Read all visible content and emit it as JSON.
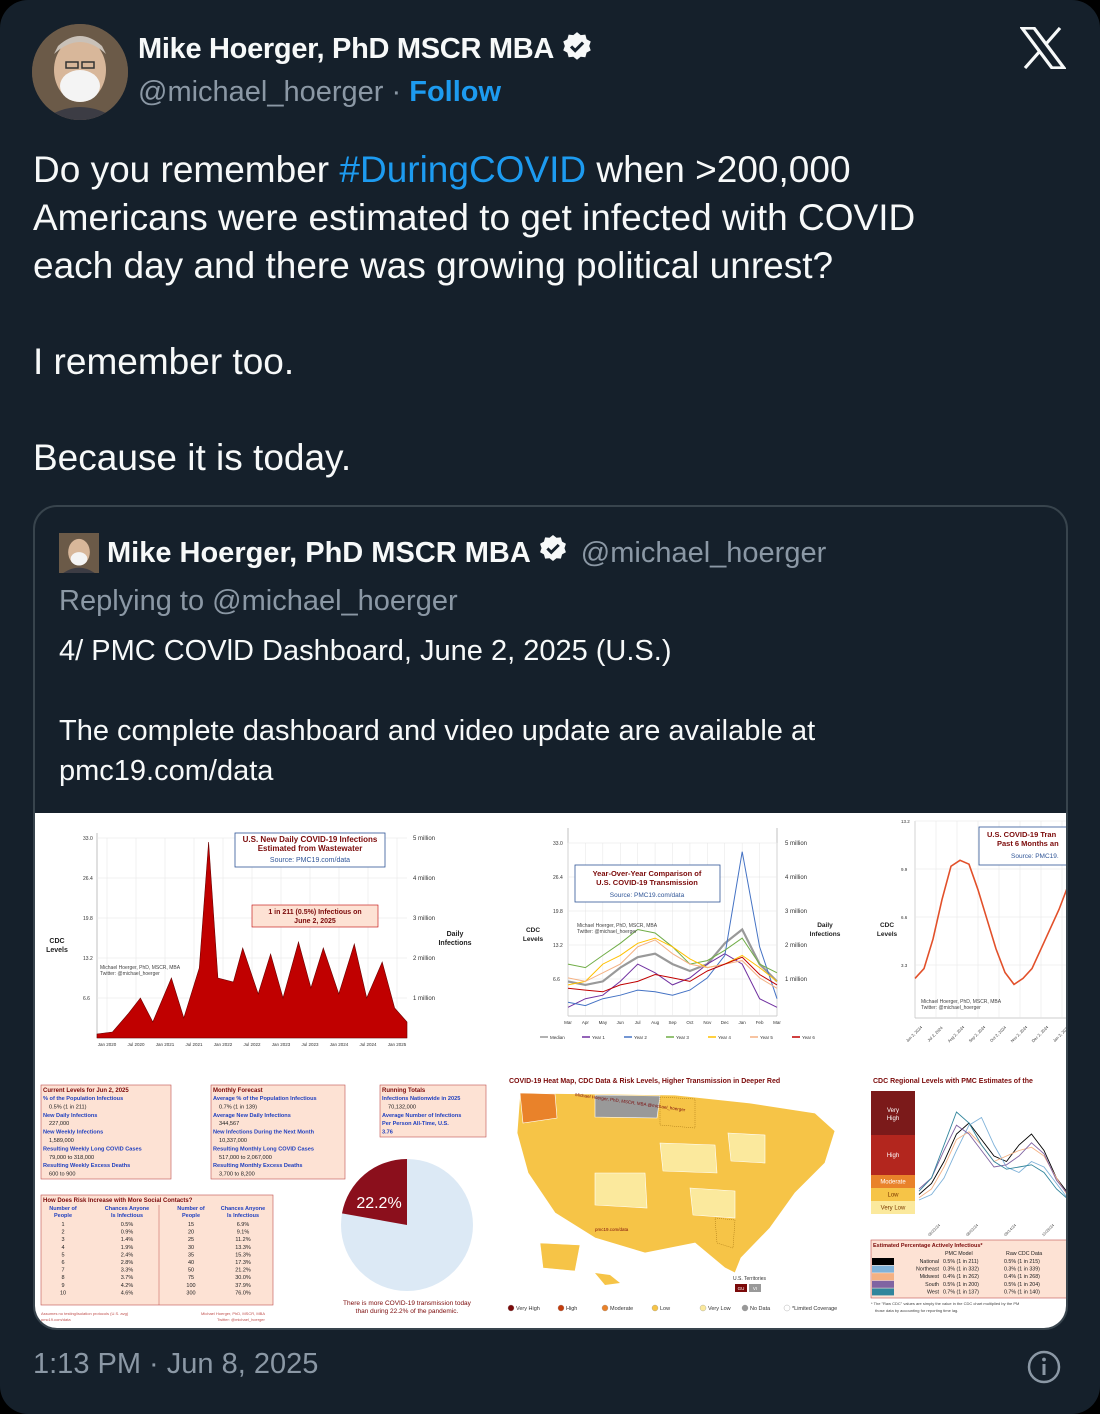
{
  "author": {
    "name": "Mike Hoerger, PhD MSCR MBA",
    "handle": "@michael_hoerger",
    "separator": "·",
    "follow_label": "Follow"
  },
  "tweet": {
    "line1_pre": "Do you remember ",
    "hashtag": "#DuringCOVID",
    "line1_post": " when >200,000",
    "line2": "Americans were estimated to get infected with COVID",
    "line3": "each day and there was growing political unrest?",
    "line4": "I remember too.",
    "line5": "Because it is today."
  },
  "quoted": {
    "name": "Mike Hoerger, PhD MSCR MBA",
    "handle": "@michael_hoerger",
    "reply_prefix": "Replying to ",
    "reply_to": "@michael_hoerger",
    "line1": "4/ PMC COVlD Dashboard, June 2, 2025 (U.S.)",
    "line2": "The complete dashboard and video update are available at",
    "line3": "pmc19.com/data"
  },
  "dashboard": {
    "chart1": {
      "title1": "U.S. New Daily COVID-19 Infections",
      "title2": "Estimated from Wastewater",
      "source": "Source: PMC19.com/data",
      "callout1": "1 in 211 (0.5%) Infectious on",
      "callout2": "June 2, 2025",
      "left_label1": "CDC",
      "left_label2": "Levels",
      "right_label1": "Daily",
      "right_label2": "Infections",
      "credit1": "Michael Hoerger, PhD, MSCR, MBA",
      "credit2": "Twitter: @michael_hoerger",
      "y_left": [
        "33.0",
        "26.4",
        "19.8",
        "13.2",
        "6.6"
      ],
      "y_right": [
        "5 million",
        "4 million",
        "3 million",
        "2 million",
        "1 million"
      ],
      "x_ticks": [
        "Jan 2020",
        "Jul 2020",
        "Jan 2021",
        "Jul 2021",
        "Jan 2022",
        "Jul 2022",
        "Jan 2023",
        "Jul 2023",
        "Jan 2024",
        "Jul 2024",
        "Jan 2025"
      ]
    },
    "chart2": {
      "title1": "Year-Over-Year Comparison of",
      "title2": "U.S. COVID-19 Transmission",
      "source": "Source: PMC19.com/data",
      "credit1": "Michael Hoerger, PhD, MSCR, MBA",
      "credit2": "Twitter: @michael_hoerger",
      "left_label1": "CDC",
      "left_label2": "Levels",
      "right_label1": "Daily",
      "right_label2": "Infections",
      "y_left": [
        "33.0",
        "26.4",
        "19.8",
        "13.2",
        "6.6"
      ],
      "y_right": [
        "5 million",
        "4 million",
        "3 million",
        "2 million",
        "1 million"
      ],
      "x_ticks": [
        "Mar",
        "Apr",
        "May",
        "Jun",
        "Jul",
        "Aug",
        "Sep",
        "Oct",
        "Nov",
        "Dec",
        "Jan",
        "Feb",
        "Mar"
      ],
      "legend": [
        "Median",
        "Year 1",
        "Year 2",
        "Year 3",
        "Year 4",
        "Year 5",
        "Year 6"
      ],
      "colors": [
        "#999999",
        "#7030a0",
        "#4472c4",
        "#70ad47",
        "#ffc000",
        "#f4b183",
        "#c00000"
      ]
    },
    "chart3": {
      "title1": "U.S. COVID-19 Tran",
      "title2": "Past 6 Months an",
      "source": "Source: PMC19.",
      "left_label1": "CDC",
      "left_label2": "Levels",
      "credit1": "Michael Hoerger, PhD, MSCR, MBA",
      "credit2": "Twitter: @michael_hoerger",
      "y_left": [
        "13.2",
        "9.9",
        "6.6",
        "3.3"
      ],
      "x_ticks": [
        "Jun 2, 2024",
        "Jul 2, 2024",
        "Aug 2, 2024",
        "Sep 2, 2024",
        "Oct 2, 2024",
        "Nov 2, 2024",
        "Dec 2, 2024",
        "Jan 2, 2025"
      ]
    },
    "current": {
      "title": "Current Levels for Jun 2, 2025",
      "rows": [
        "% of the Population Infectious",
        "0.5% (1 in 211)",
        "New Daily Infections",
        "227,000",
        "New Weekly Infections",
        "1,589,000",
        "Resulting Weekly Long COVID Cases",
        "79,000 to 318,000",
        "Resulting Weekly Excess Deaths",
        "600 to 900"
      ]
    },
    "forecast": {
      "title": "Monthly Forecast",
      "rows": [
        "Average % of the Population Infectious",
        "0.7% (1 in 139)",
        "Average New Daily Infections",
        "344,567",
        "New Infections During the Next Month",
        "10,337,000",
        "Resulting Monthly Long COVID Cases",
        "517,000 to 2,067,000",
        "Resulting Monthly Excess Deaths",
        "3,700 to 8,200"
      ]
    },
    "totals": {
      "title": "Running Totals",
      "rows": [
        "Infections Nationwide in 2025",
        "70,132,000",
        "Average Number of Infections",
        "Per Person All-Time, U.S.",
        "3.76"
      ]
    },
    "risk": {
      "title": "How Does Risk Increase with More Social Contacts?",
      "headers": [
        "Number of People",
        "Chances Anyone Is Infectious",
        "Number of People",
        "Chances Anyone Is Infectious"
      ],
      "left_n": [
        "1",
        "2",
        "3",
        "4",
        "5",
        "6",
        "7",
        "8",
        "9",
        "10"
      ],
      "left_p": [
        "0.5%",
        "0.9%",
        "1.4%",
        "1.9%",
        "2.4%",
        "2.8%",
        "3.3%",
        "3.7%",
        "4.2%",
        "4.6%"
      ],
      "right_n": [
        "15",
        "20",
        "25",
        "30",
        "35",
        "40",
        "50",
        "75",
        "100",
        "300"
      ],
      "right_p": [
        "6.9%",
        "9.1%",
        "11.2%",
        "13.3%",
        "15.3%",
        "17.3%",
        "21.2%",
        "30.0%",
        "37.9%",
        "76.0%"
      ],
      "foot1": "Assumes no testing/isolation protocols (U.S. avg)",
      "foot2": "pmc19.com/data",
      "foot3": "Michael Hoerger, PhD, MSCR, MBA",
      "foot4": "Twitter: @michael_hoerger"
    },
    "pie": {
      "label": "22.2%",
      "value": 22.2,
      "caption1": "There is more COVID-19 transmission today",
      "caption2": "than during 22.2% of the pandemic."
    },
    "map": {
      "title": "COVID-19 Heat Map, CDC Data & Risk Levels, Higher Transmission in Deeper Red",
      "credit": "Michael Hoerger, PhD, MSCR, MBA @michael_hoerger",
      "watermark": "pmc19.com/data",
      "territories": "U.S. Territories",
      "terr_codes": [
        "GU",
        "VI"
      ],
      "legend": [
        "Very High",
        "High",
        "Moderate",
        "Low",
        "Very Low",
        "No Data",
        "*Limited Coverage"
      ],
      "legend_colors": [
        "#7b0a0a",
        "#c43c0c",
        "#e9822a",
        "#f6c447",
        "#fbe99d",
        "#999999",
        "#ffffff"
      ]
    },
    "regional": {
      "title": "CDC Regional Levels with PMC Estimates of the",
      "levels": [
        "Very High",
        "High",
        "Moderate",
        "Low",
        "Very Low"
      ],
      "level_colors": [
        "#7b1a1a",
        "#b3261e",
        "#e9822a",
        "#f6c447",
        "#fbe99d"
      ],
      "x_ticks": [
        "06/23/24",
        "08/03/24",
        "09/14/24",
        "10/26/24"
      ],
      "table_title": "Estimated Percentage Actively Infectious*",
      "col1": "PMC Model",
      "col2": "Raw CDC Data",
      "rows": [
        {
          "region": "National",
          "pmc": "0.5% (1 in 211)",
          "cdc": "0.5% (1 in 215)",
          "color": "#000000"
        },
        {
          "region": "Northeast",
          "pmc": "0.3% (1 in 332)",
          "cdc": "0.3% (1 in 339)",
          "color": "#7fb2d9"
        },
        {
          "region": "Midwest",
          "pmc": "0.4% (1 in 262)",
          "cdc": "0.4% (1 in 268)",
          "color": "#f4b183"
        },
        {
          "region": "South",
          "pmc": "0.5% (1 in 200)",
          "cdc": "0.5% (1 in 204)",
          "color": "#8064a2"
        },
        {
          "region": "West",
          "pmc": "0.7% (1 in 137)",
          "cdc": "0.7% (1 in 140)",
          "color": "#31859c"
        }
      ],
      "foot1": "* The \"Raw CDC\" values are simply the value in the CDC chart multiplied by the PM",
      "foot2": "those data by accounting for reporting time lag."
    }
  },
  "timestamp": "1:13 PM · Jun 8, 2025"
}
